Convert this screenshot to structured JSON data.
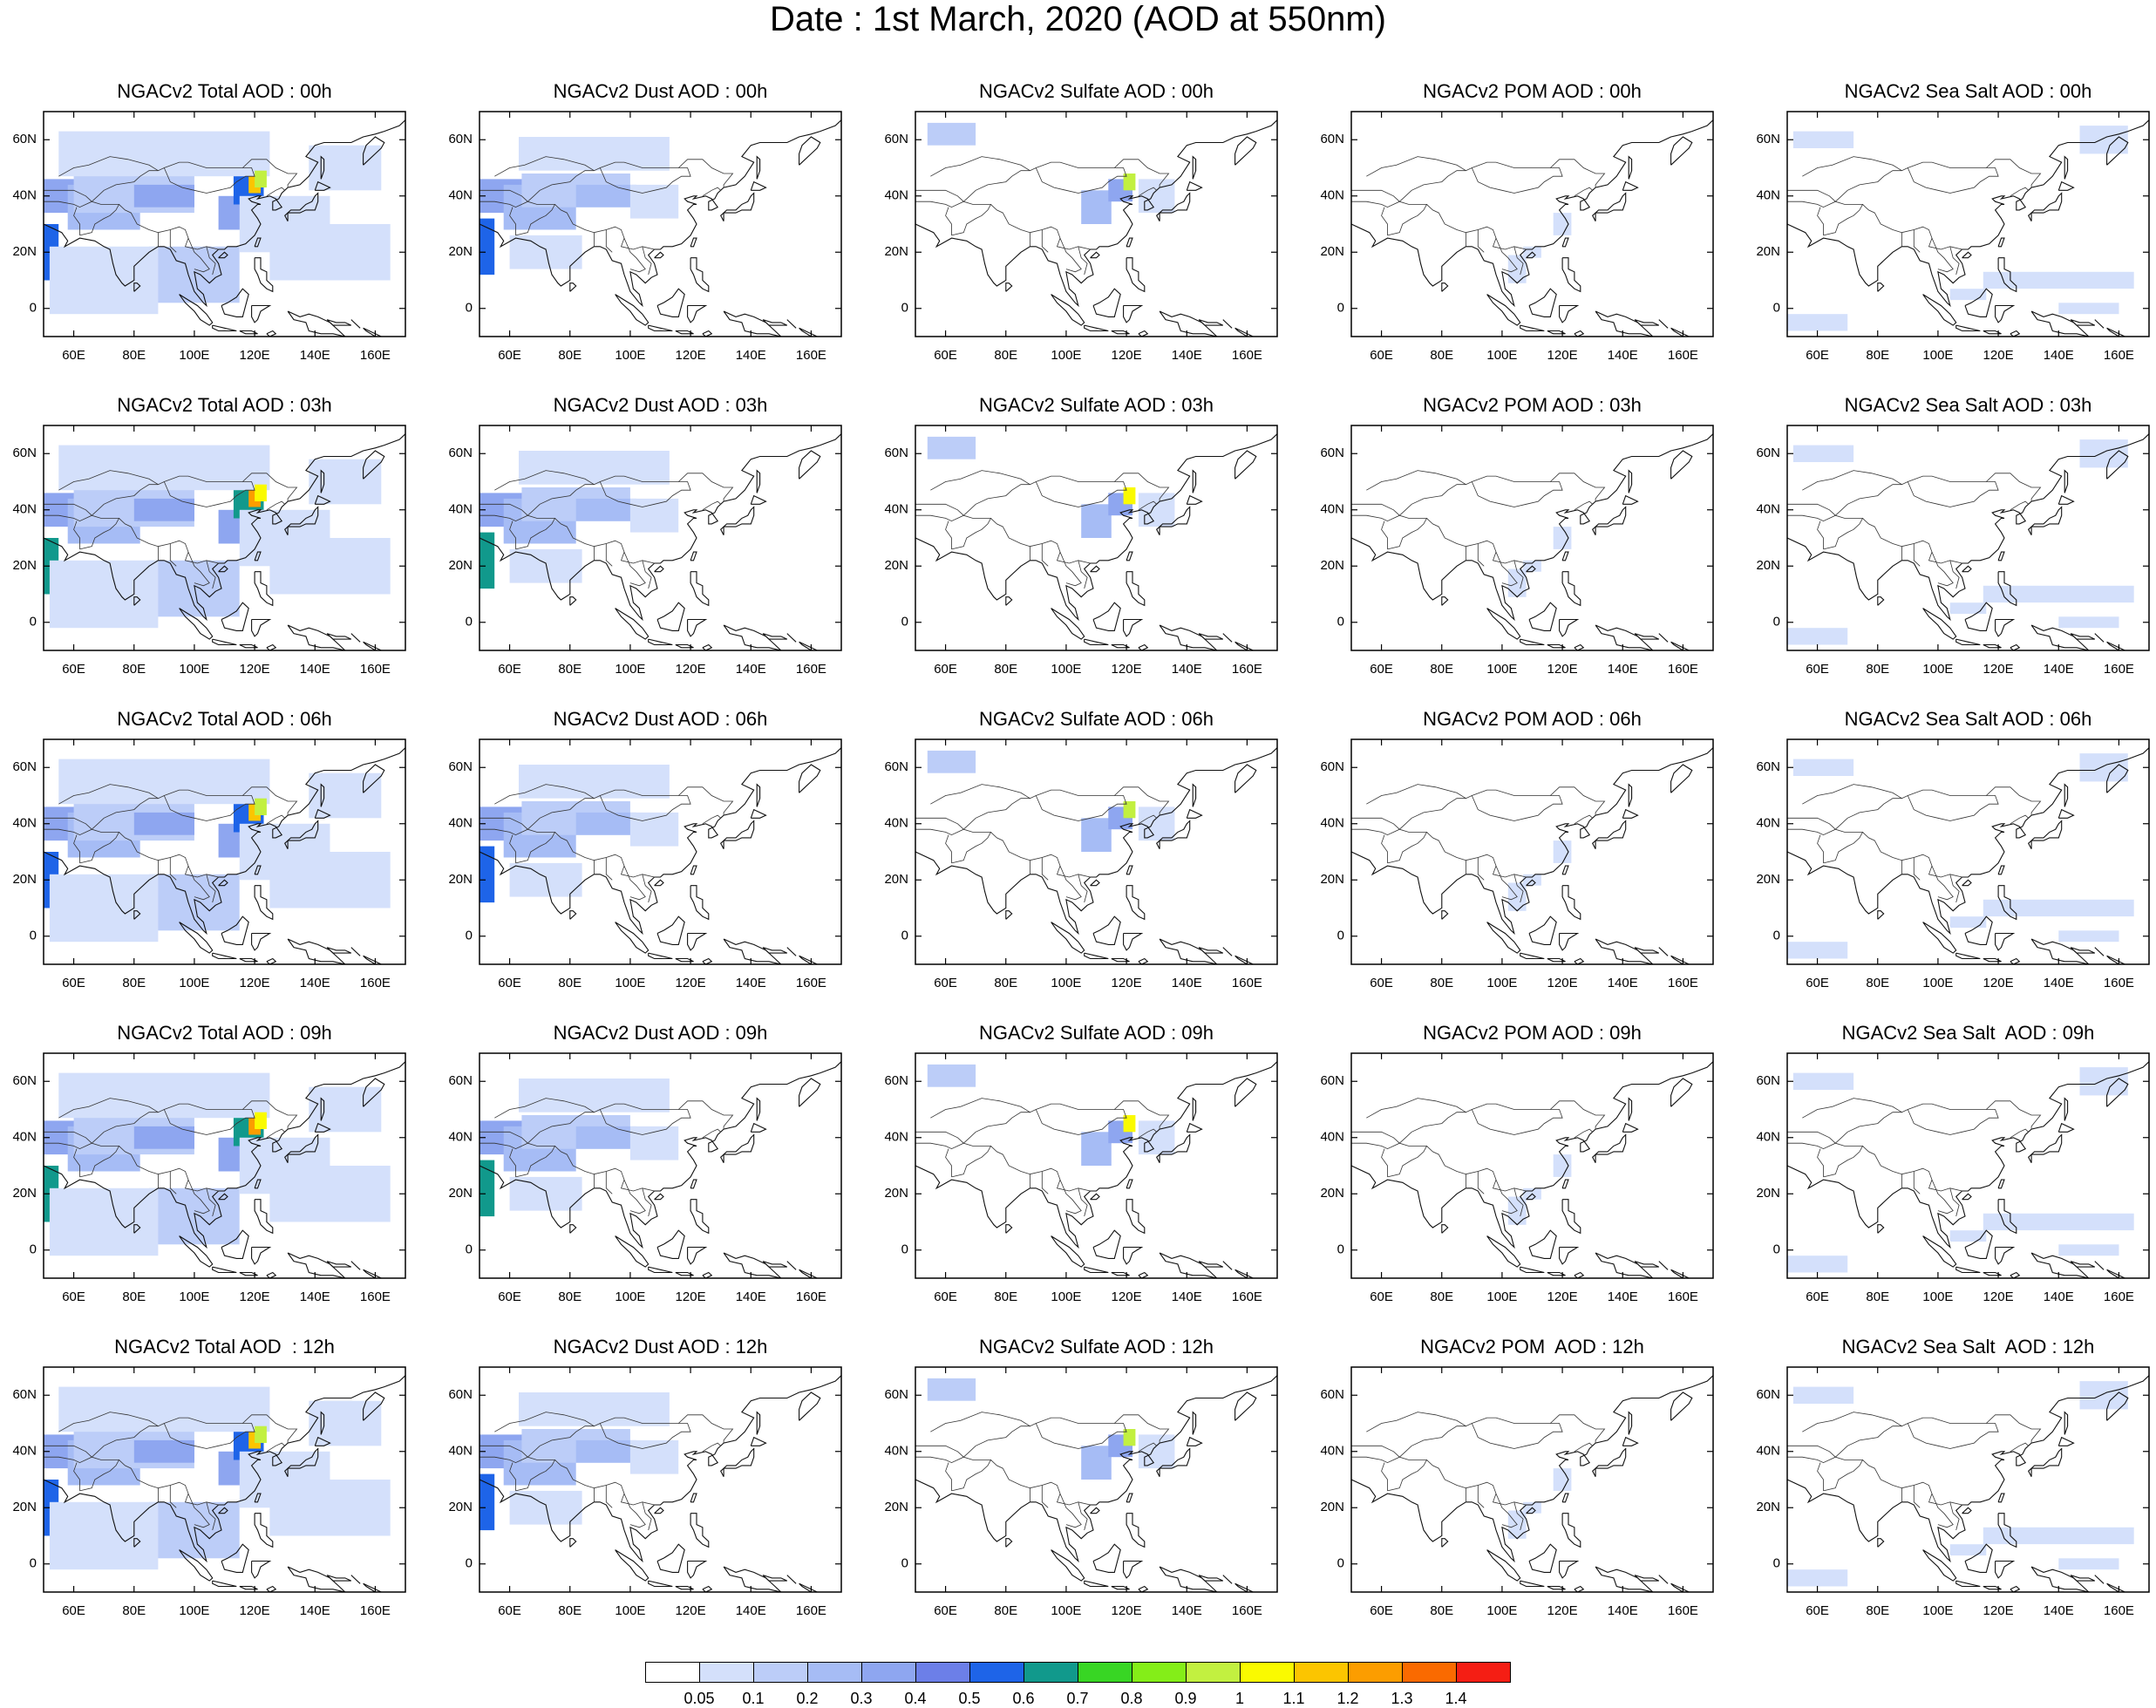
{
  "title": "Date : 1st March, 2020 (AOD at 550nm)",
  "lat_ticks": [
    "60N",
    "40N",
    "20N",
    "0"
  ],
  "lon_ticks": [
    "60E",
    "80E",
    "100E",
    "120E",
    "140E",
    "160E"
  ],
  "panels": [
    [
      "NGACv2 Total AOD : 00h",
      "NGACv2 Dust AOD : 00h",
      "NGACv2 Sulfate AOD : 00h",
      "NGACv2 POM AOD : 00h",
      "NGACv2 Sea Salt AOD : 00h"
    ],
    [
      "NGACv2 Total AOD : 03h",
      "NGACv2 Dust AOD : 03h",
      "NGACv2 Sulfate AOD : 03h",
      "NGACv2 POM AOD : 03h",
      "NGACv2 Sea Salt AOD : 03h"
    ],
    [
      "NGACv2 Total AOD : 06h",
      "NGACv2 Dust AOD : 06h",
      "NGACv2 Sulfate AOD : 06h",
      "NGACv2 POM AOD : 06h",
      "NGACv2 Sea Salt AOD : 06h"
    ],
    [
      "NGACv2 Total AOD : 09h",
      "NGACv2 Dust AOD : 09h",
      "NGACv2 Sulfate AOD : 09h",
      "NGACv2 POM AOD : 09h",
      "NGACv2 Sea Salt  AOD : 09h"
    ],
    [
      "NGACv2 Total AOD  : 12h",
      "NGACv2 Dust AOD : 12h",
      "NGACv2 Sulfate AOD : 12h",
      "NGACv2 POM  AOD : 12h",
      "NGACv2 Sea Salt  AOD : 12h"
    ]
  ],
  "colorbar": {
    "labels": [
      "0.05",
      "0.1",
      "0.2",
      "0.3",
      "0.4",
      "0.5",
      "0.6",
      "0.7",
      "0.8",
      "0.9",
      "1",
      "1.1",
      "1.2",
      "1.3",
      "1.4"
    ],
    "colors": [
      "#ffffff",
      "#d4e0fb",
      "#bccdf8",
      "#a6bcf5",
      "#8ea6f0",
      "#6c7fe8",
      "#1e64e8",
      "#11998c",
      "#38d624",
      "#84ee18",
      "#c2f040",
      "#fafa00",
      "#fcc500",
      "#fc9d00",
      "#fa6a00",
      "#f51e14"
    ]
  }
}
